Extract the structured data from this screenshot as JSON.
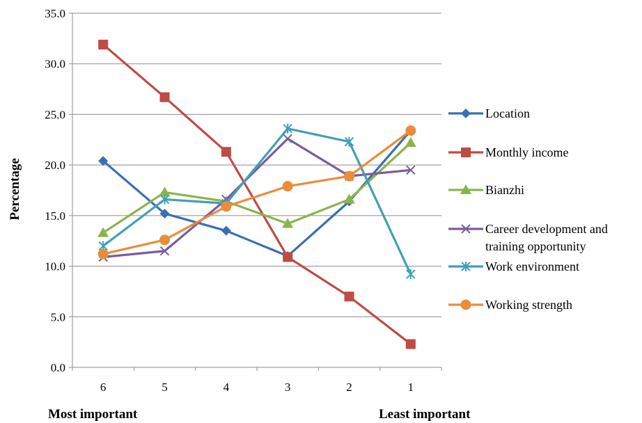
{
  "chart_data": {
    "type": "line",
    "title": "",
    "xlabel": "",
    "ylabel": "Percentage",
    "ylim": [
      0,
      35
    ],
    "yticks": [
      "0.0",
      "5.0",
      "10.0",
      "15.0",
      "20.0",
      "25.0",
      "30.0",
      "35.0"
    ],
    "categories": [
      "6",
      "5",
      "4",
      "3",
      "2",
      "1"
    ],
    "grid": true,
    "legend_position": "right",
    "footer_left": "Most important",
    "footer_right": "Least important",
    "series": [
      {
        "name": "Location",
        "color": "#3a6fb3",
        "marker": "diamond",
        "values": [
          20.4,
          15.2,
          13.5,
          11.0,
          16.4,
          23.4
        ]
      },
      {
        "name": "Monthly income",
        "color": "#bf4b45",
        "marker": "square",
        "values": [
          31.9,
          26.7,
          21.3,
          10.9,
          7.0,
          2.3
        ]
      },
      {
        "name": "Bianzhi",
        "color": "#8cb34d",
        "marker": "triangle",
        "values": [
          13.3,
          17.3,
          16.4,
          14.2,
          16.6,
          22.2
        ]
      },
      {
        "name": "Career development and training opportunity",
        "color": "#7a5c9e",
        "marker": "x",
        "values": [
          10.9,
          11.5,
          16.6,
          22.6,
          18.9,
          19.5
        ]
      },
      {
        "name": "Work environment",
        "color": "#3fa0b8",
        "marker": "star",
        "values": [
          12.0,
          16.6,
          16.2,
          23.6,
          22.3,
          9.2
        ]
      },
      {
        "name": "Working strength",
        "color": "#e98d3b",
        "marker": "circle",
        "values": [
          11.2,
          12.6,
          15.9,
          17.9,
          18.9,
          23.4
        ]
      }
    ],
    "legend_lines": [
      [
        "Location"
      ],
      [
        "Monthly income"
      ],
      [
        "Bianzhi"
      ],
      [
        "Career development and",
        "training opportunity"
      ],
      [
        "Work environment"
      ],
      [
        "Working strength"
      ]
    ]
  }
}
